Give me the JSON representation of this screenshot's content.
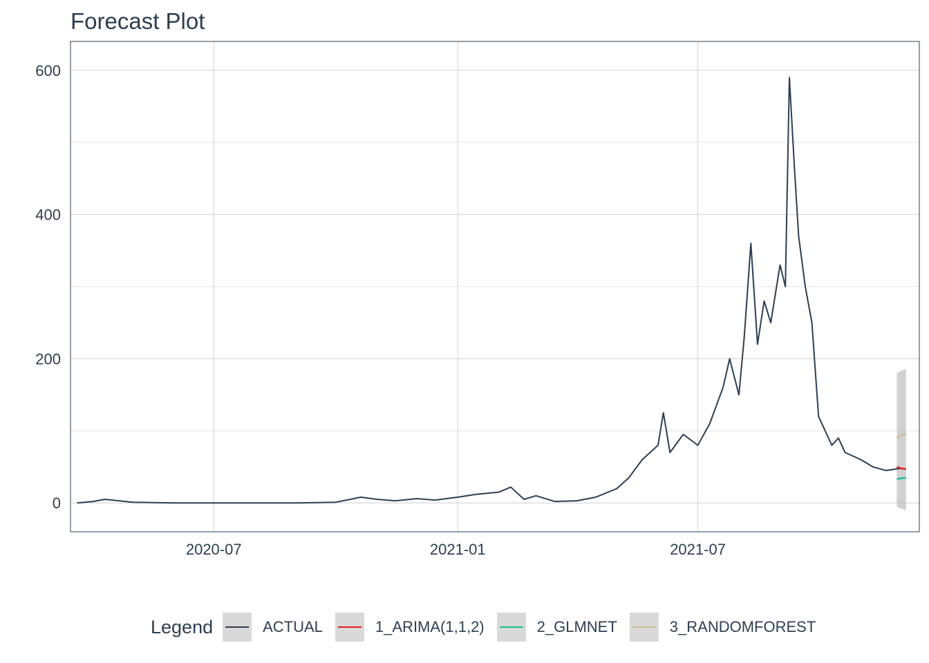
{
  "chart_data": {
    "type": "line",
    "title": "Forecast Plot",
    "xlabel": "",
    "ylabel": "",
    "x_axis": {
      "type": "date",
      "range": [
        "2020-03-15",
        "2021-12-15"
      ],
      "tick_labels": [
        "2020-07",
        "2021-01",
        "2021-07"
      ],
      "ticks": [
        "2020-07-01",
        "2021-01-01",
        "2021-07-01"
      ]
    },
    "y_axis": {
      "range": [
        -40,
        640
      ],
      "tick_labels": [
        "0",
        "200",
        "400",
        "600"
      ],
      "ticks": [
        0,
        200,
        400,
        600
      ]
    },
    "grid": true,
    "legend": {
      "title": "Legend",
      "position": "bottom"
    },
    "series": [
      {
        "name": "ACTUAL",
        "color": "#2c3e50",
        "x": [
          "2020-03-20",
          "2020-04-01",
          "2020-04-10",
          "2020-05-01",
          "2020-06-01",
          "2020-07-01",
          "2020-08-01",
          "2020-09-01",
          "2020-10-01",
          "2020-10-20",
          "2020-11-01",
          "2020-11-15",
          "2020-12-01",
          "2020-12-15",
          "2021-01-01",
          "2021-01-15",
          "2021-02-01",
          "2021-02-10",
          "2021-02-20",
          "2021-03-01",
          "2021-03-15",
          "2021-04-01",
          "2021-04-15",
          "2021-05-01",
          "2021-05-10",
          "2021-05-20",
          "2021-06-01",
          "2021-06-05",
          "2021-06-10",
          "2021-06-20",
          "2021-07-01",
          "2021-07-10",
          "2021-07-20",
          "2021-07-25",
          "2021-08-01",
          "2021-08-05",
          "2021-08-10",
          "2021-08-15",
          "2021-08-20",
          "2021-08-25",
          "2021-09-01",
          "2021-09-05",
          "2021-09-08",
          "2021-09-12",
          "2021-09-15",
          "2021-09-20",
          "2021-09-25",
          "2021-09-30",
          "2021-10-05",
          "2021-10-10",
          "2021-10-15",
          "2021-10-20",
          "2021-11-01",
          "2021-11-10",
          "2021-11-20",
          "2021-12-01"
        ],
        "y": [
          0,
          2,
          5,
          1,
          0,
          0,
          0,
          0,
          1,
          8,
          5,
          3,
          6,
          4,
          8,
          12,
          15,
          22,
          5,
          10,
          2,
          3,
          8,
          20,
          35,
          60,
          80,
          125,
          70,
          95,
          80,
          110,
          160,
          200,
          150,
          230,
          360,
          220,
          280,
          250,
          330,
          300,
          590,
          460,
          370,
          300,
          250,
          120,
          100,
          80,
          90,
          70,
          60,
          50,
          45,
          48
        ]
      },
      {
        "name": "1_ARIMA(1,1,2)",
        "color": "#e31a1c",
        "x": [
          "2021-11-28",
          "2021-12-01",
          "2021-12-05"
        ],
        "y": [
          50,
          48,
          47
        ]
      },
      {
        "name": "2_GLMNET",
        "color": "#18bc9c",
        "x": [
          "2021-11-28",
          "2021-12-01",
          "2021-12-05"
        ],
        "y": [
          33,
          34,
          35
        ]
      },
      {
        "name": "3_RANDOMFOREST",
        "color": "#ccbe93",
        "x": [
          "2021-11-28",
          "2021-12-01",
          "2021-12-05"
        ],
        "y": [
          90,
          93,
          96
        ]
      }
    ],
    "confidence_interval": {
      "x": [
        "2021-11-28",
        "2021-12-01",
        "2021-12-05"
      ],
      "lower": [
        -5,
        -8,
        -10
      ],
      "upper": [
        180,
        183,
        186
      ]
    }
  }
}
